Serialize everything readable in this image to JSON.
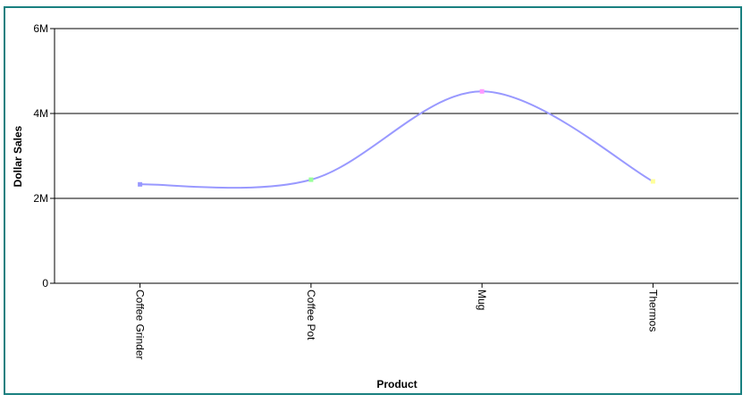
{
  "chart_data": {
    "type": "line",
    "title": "",
    "xlabel": "Product",
    "ylabel": "Dollar Sales",
    "categories": [
      "Coffee Grinder",
      "Coffee Pot",
      "Mug",
      "Thermos"
    ],
    "series": [
      {
        "values": [
          2330000,
          2440000,
          4520000,
          2400000
        ]
      }
    ],
    "ylim": [
      0,
      6000000
    ],
    "yticks": [
      {
        "value": 0,
        "label": "0"
      },
      {
        "value": 2000000,
        "label": "2M"
      },
      {
        "value": 4000000,
        "label": "4M"
      },
      {
        "value": 6000000,
        "label": "6M"
      }
    ],
    "grid": true,
    "line_color": "#9999ff",
    "marker_colors": [
      "#9999ff",
      "#99ff99",
      "#ff99ff",
      "#ffff99"
    ],
    "frame_color": "#1a8080"
  }
}
